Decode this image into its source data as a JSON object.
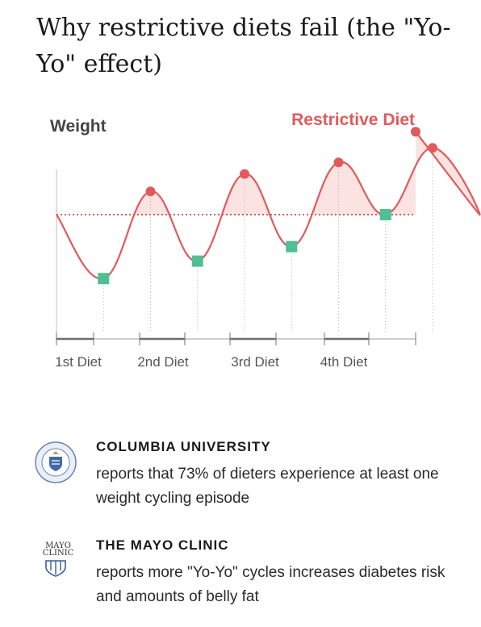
{
  "headline": "Why restrictive diets fail (the \"Yo-Yo\" effect)",
  "chart_data": {
    "type": "line",
    "ylabel": "Weight",
    "series_label": "Restrictive Diet",
    "categories": [
      "1st Diet",
      "2nd Diet",
      "3rd Diet",
      "4th Diet"
    ],
    "baseline": 0,
    "x": [
      0,
      0.5,
      1,
      1.5,
      2,
      2.5,
      3,
      3.5,
      4,
      4.5
    ],
    "values": [
      0,
      -2.2,
      0.8,
      -1.6,
      1.4,
      -1.1,
      1.8,
      0,
      2.3,
      0
    ],
    "peaks": [
      0.8,
      1.4,
      1.8,
      2.3
    ],
    "troughs": [
      -2.2,
      -1.6,
      -1.1,
      0
    ],
    "colors": {
      "line": "#e05a5c",
      "fill": "#fbe3e2",
      "trough_marker": "#4fbf95",
      "axis": "#888888",
      "ylabel": "#444444"
    }
  },
  "sources": [
    {
      "name": "COLUMBIA UNIVERSITY",
      "description": "reports that 73% of dieters experience at least one weight cycling episode",
      "logo": "columbia-seal-icon"
    },
    {
      "name": "THE MAYO CLINIC",
      "description": "reports more \"Yo-Yo\" cycles increases diabetes risk and amounts of belly fat",
      "logo": "mayo-clinic-shield-icon",
      "logo_text": [
        "MAYO",
        "CLINIC"
      ]
    }
  ]
}
